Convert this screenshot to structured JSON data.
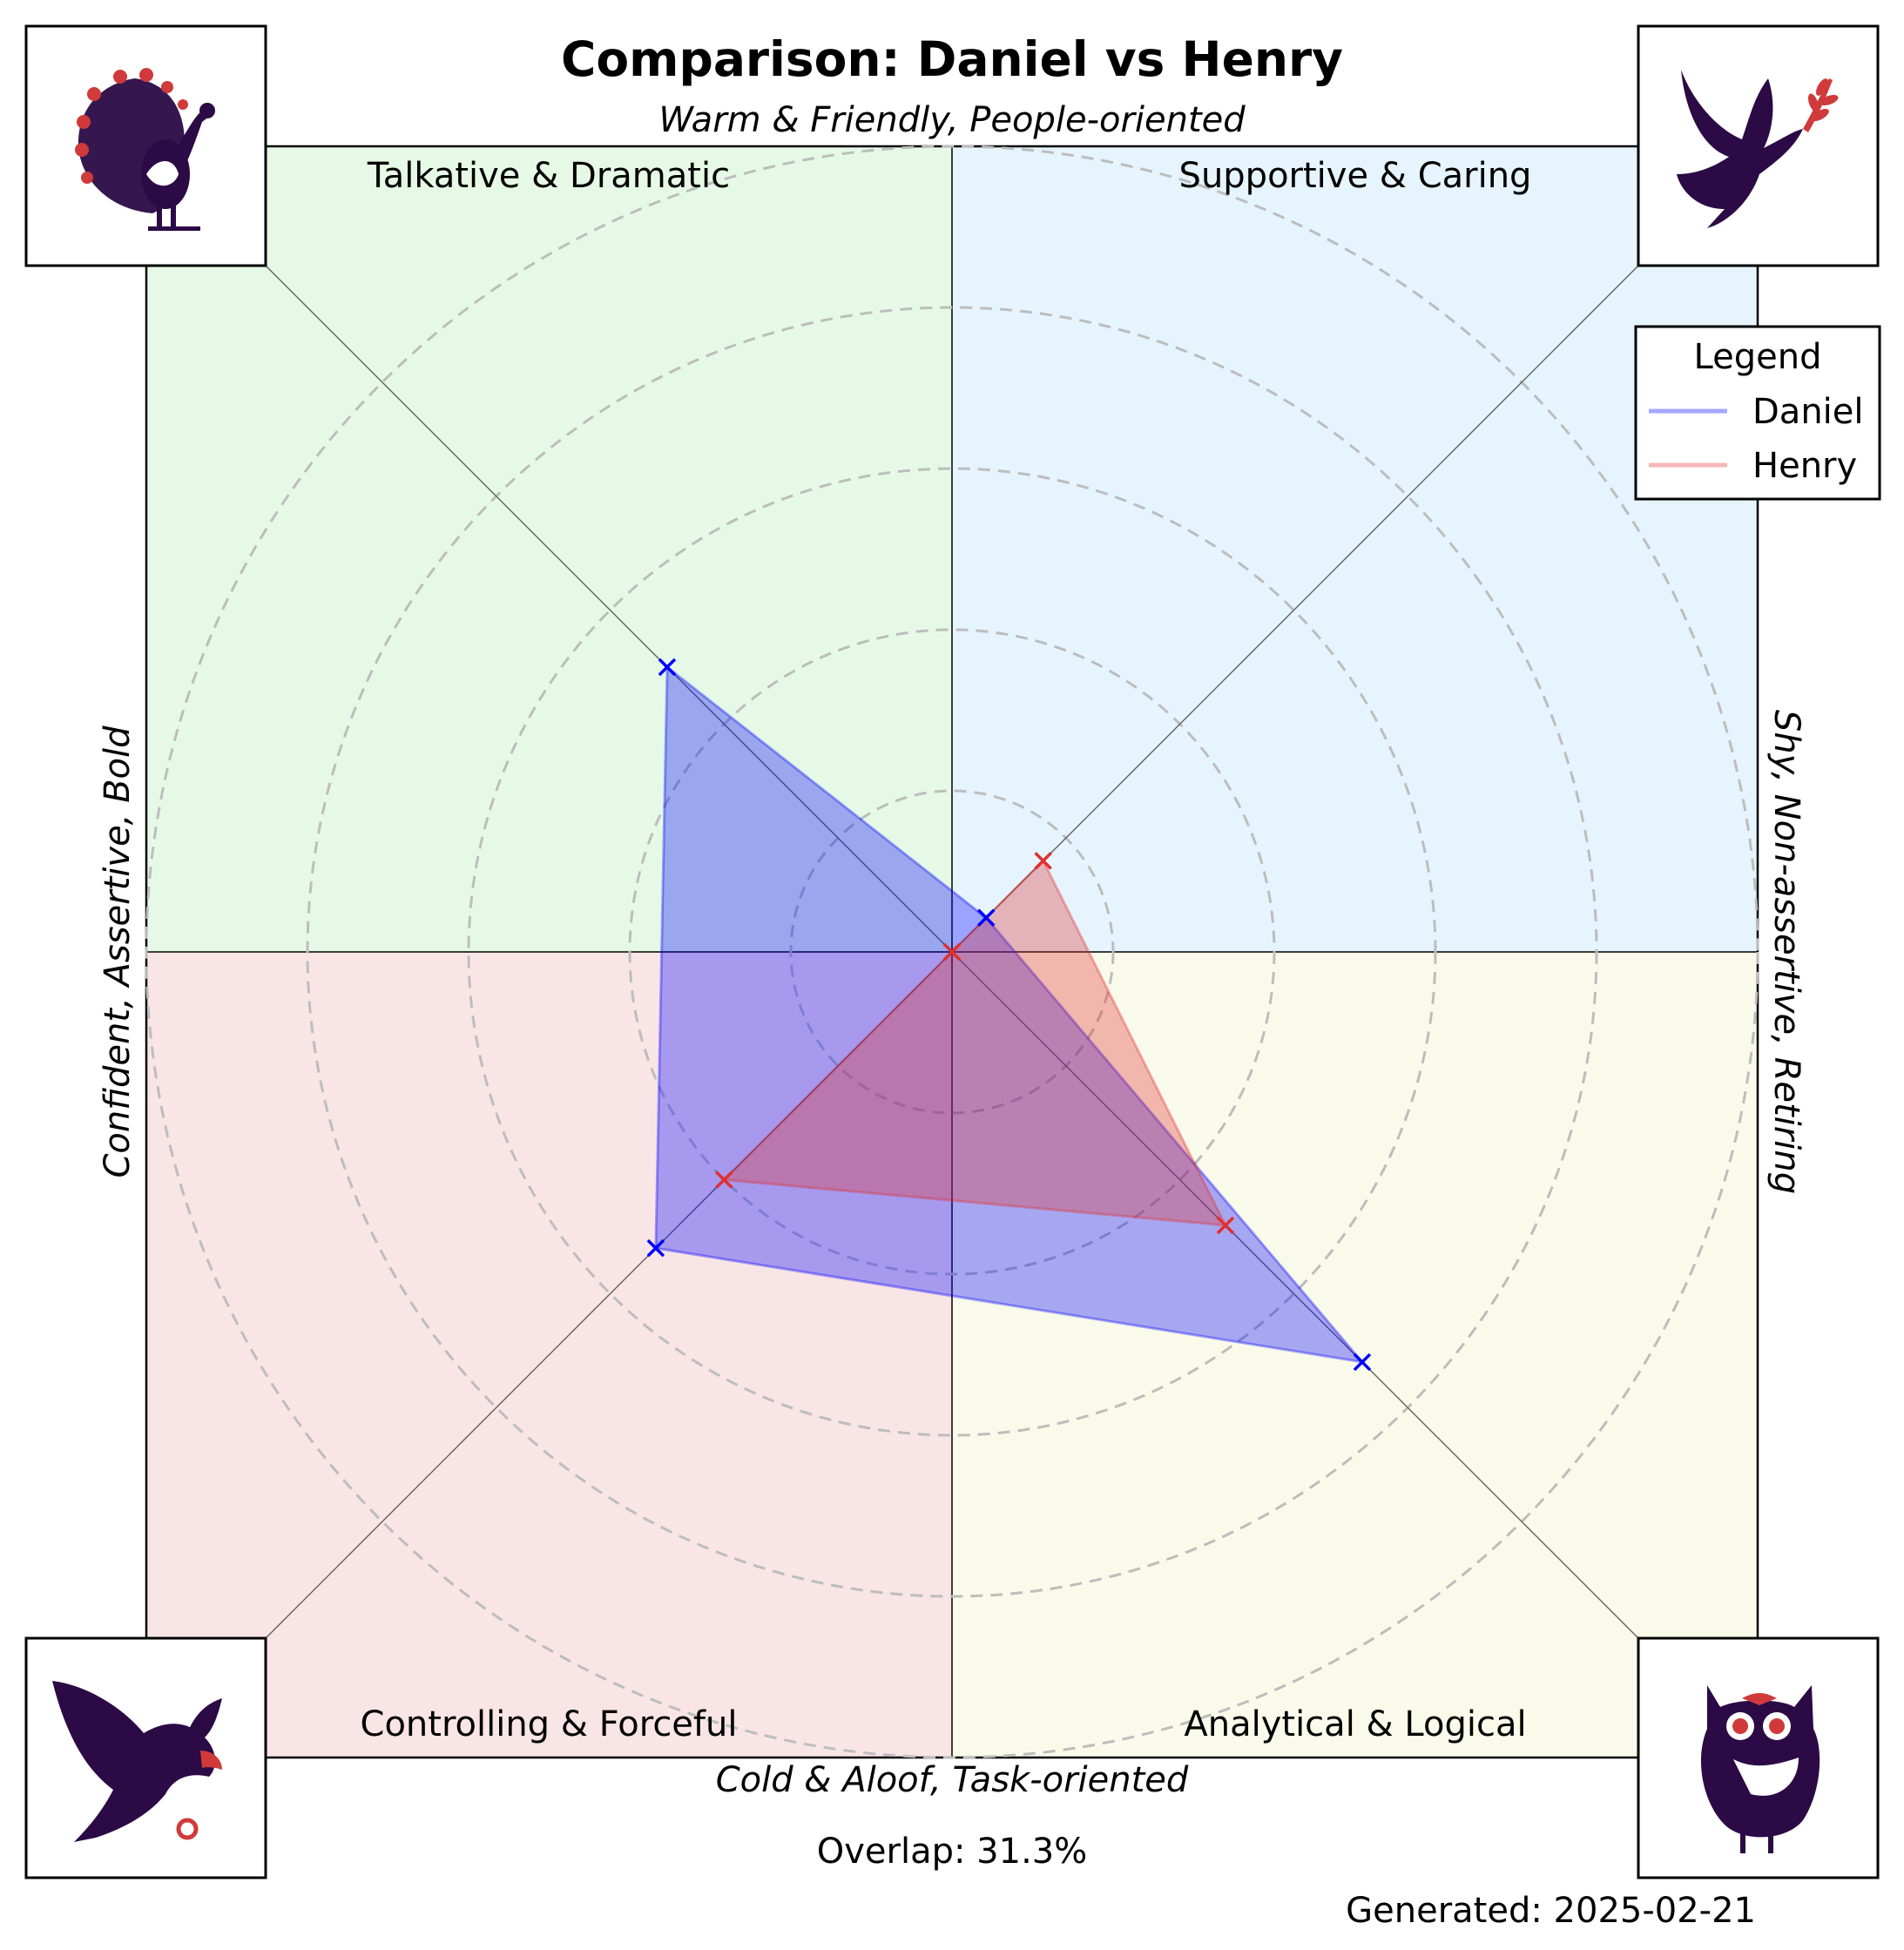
{
  "chart_data": {
    "type": "radar",
    "title": "Comparison: Daniel vs Henry",
    "axes": {
      "top": "Warm & Friendly, People-oriented",
      "bottom": "Cold & Aloof, Task-oriented",
      "left": "Confident, Assertive, Bold",
      "right": "Shy, Non-assertive, Retiring"
    },
    "quadrants": [
      {
        "name": "Talkative & Dramatic",
        "color": "#e6f9e6",
        "icon": "peacock-icon"
      },
      {
        "name": "Supportive & Caring",
        "color": "#e6f4fd",
        "icon": "dove-icon"
      },
      {
        "name": "Controlling & Forceful",
        "color": "#f9e5e6",
        "icon": "eagle-icon"
      },
      {
        "name": "Analytical & Logical",
        "color": "#fafaea",
        "icon": "owl-icon"
      }
    ],
    "categories": [
      "Talkative & Dramatic",
      "Supportive & Caring",
      "Analytical & Logical",
      "Controlling & Forceful"
    ],
    "rlim": [
      0,
      5
    ],
    "grid": true,
    "series": [
      {
        "name": "Daniel",
        "color": "#0000ff",
        "values": [
          2.5,
          0.3,
          3.6,
          2.6
        ]
      },
      {
        "name": "Henry",
        "color": "#e03030",
        "values": [
          0,
          0.8,
          2.4,
          2.0
        ]
      }
    ],
    "legend": {
      "title": "Legend",
      "position": "top-right"
    },
    "overlap_label": "Overlap: 31.3%",
    "generated_label": "Generated: 2025-02-21"
  }
}
